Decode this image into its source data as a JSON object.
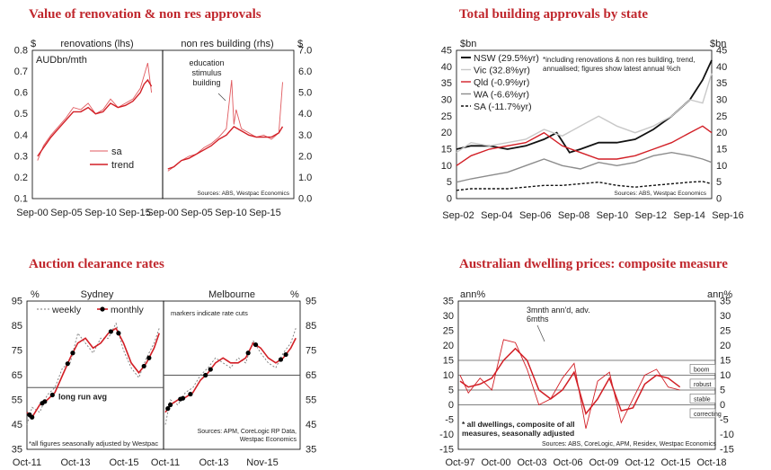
{
  "titles": {
    "p1": "Value of renovation & non res approvals",
    "p2": "Total building approvals by state",
    "p3": "Auction clearance rates",
    "p4": "Australian dwelling prices: composite measure"
  },
  "chart_data": [
    {
      "id": "p1",
      "type": "line",
      "title": "Value of renovation & non res approvals",
      "left": {
        "subtitle": "renovations (lhs)",
        "unit_label": "$",
        "ylabel": "AUDbn/mth",
        "ylim": [
          0.1,
          0.8
        ],
        "yticks": [
          "0.8",
          "0.7",
          "0.6",
          "0.5",
          "0.4",
          "0.3",
          "0.2",
          "0.1"
        ],
        "xticks": [
          "Sep-00",
          "Sep-05",
          "Sep-10",
          "Sep-15"
        ],
        "legend": [
          "sa",
          "trend"
        ],
        "series": [
          {
            "name": "sa",
            "x": [
              2000.7,
              2001.5,
              2002.5,
              2003.5,
              2004.5,
              2005.5,
              2006.5,
              2007.5,
              2008.5,
              2009.5,
              2010.5,
              2011.5,
              2012.5,
              2013.5,
              2014.5,
              2015.0,
              2015.5,
              2016.0
            ],
            "values": [
              0.28,
              0.35,
              0.4,
              0.44,
              0.48,
              0.53,
              0.52,
              0.55,
              0.5,
              0.52,
              0.57,
              0.53,
              0.55,
              0.57,
              0.62,
              0.68,
              0.74,
              0.6
            ]
          },
          {
            "name": "trend",
            "x": [
              2000.7,
              2001.5,
              2002.5,
              2003.5,
              2004.5,
              2005.5,
              2006.5,
              2007.5,
              2008.5,
              2009.5,
              2010.5,
              2011.5,
              2012.5,
              2013.5,
              2014.5,
              2015.0,
              2015.5,
              2016.0
            ],
            "values": [
              0.3,
              0.34,
              0.39,
              0.43,
              0.47,
              0.51,
              0.51,
              0.53,
              0.5,
              0.51,
              0.55,
              0.53,
              0.54,
              0.56,
              0.6,
              0.64,
              0.66,
              0.63
            ]
          }
        ]
      },
      "right": {
        "subtitle": "non res building (rhs)",
        "unit_label": "$",
        "ylim": [
          0,
          7
        ],
        "yticks": [
          "7.0",
          "6.0",
          "5.0",
          "4.0",
          "3.0",
          "2.0",
          "1.0",
          "0.0"
        ],
        "xticks": [
          "Sep-00",
          "Sep-05",
          "Sep-10",
          "Sep-15"
        ],
        "annotation": [
          "education",
          "stimulus",
          "building"
        ],
        "series": [
          {
            "name": "sa",
            "x": [
              2000.7,
              2001.5,
              2002.5,
              2003.5,
              2004.5,
              2005.5,
              2006.5,
              2007.5,
              2008.5,
              2009.2,
              2009.5,
              2009.8,
              2010.5,
              2011.5,
              2012.5,
              2013.5,
              2014.5,
              2015.5,
              2016.0
            ],
            "values": [
              1.3,
              1.5,
              1.8,
              2.0,
              2.1,
              2.4,
              2.6,
              2.9,
              3.3,
              5.6,
              3.5,
              4.2,
              3.3,
              3.1,
              2.9,
              3.0,
              2.8,
              3.1,
              5.5
            ]
          },
          {
            "name": "trend",
            "x": [
              2000.7,
              2001.5,
              2002.5,
              2003.5,
              2004.5,
              2005.5,
              2006.5,
              2007.5,
              2008.5,
              2009.5,
              2010.5,
              2011.5,
              2012.5,
              2013.5,
              2014.5,
              2015.5,
              2016.0
            ],
            "values": [
              1.4,
              1.5,
              1.8,
              1.9,
              2.1,
              2.3,
              2.5,
              2.8,
              3.0,
              3.4,
              3.2,
              3.0,
              2.9,
              2.9,
              2.9,
              3.1,
              3.4
            ]
          }
        ]
      },
      "source": "Sources: ABS, Westpac Economics"
    },
    {
      "id": "p2",
      "type": "line",
      "title": "Total building approvals by state",
      "unit_left": "$bn",
      "unit_right": "$bn",
      "ylim": [
        0,
        45
      ],
      "yticks": [
        "45",
        "40",
        "35",
        "30",
        "25",
        "20",
        "15",
        "10",
        "5",
        "0"
      ],
      "xticks": [
        "Sep-02",
        "Sep-04",
        "Sep-06",
        "Sep-08",
        "Sep-10",
        "Sep-12",
        "Sep-14",
        "Sep-16"
      ],
      "note": [
        "*including renovations & non res building, trend,",
        "annualised; figures show latest annual %ch"
      ],
      "source": "Sources: ABS, Westpac Economics",
      "series": [
        {
          "name": "NSW (29.5%yr)",
          "color": "#111111",
          "x": [
            2002.7,
            2003.5,
            2004.5,
            2005.5,
            2006.5,
            2007.5,
            2008.2,
            2008.9,
            2009.5,
            2010.5,
            2011.5,
            2012.5,
            2013.5,
            2014.5,
            2015.5,
            2016.2,
            2016.7
          ],
          "values": [
            15,
            16,
            16,
            15,
            16,
            18,
            20,
            14,
            15,
            17,
            17,
            18,
            21,
            25,
            30,
            36,
            42
          ]
        },
        {
          "name": "Vic (32.8%yr)",
          "color": "#c8c8c8",
          "x": [
            2002.7,
            2003.5,
            2004.5,
            2005.5,
            2006.5,
            2007.5,
            2008.5,
            2009.5,
            2010.5,
            2011.5,
            2012.5,
            2013.5,
            2014.5,
            2015.5,
            2016.2,
            2016.7
          ],
          "values": [
            14,
            17,
            16,
            17,
            18,
            21,
            19,
            22,
            25,
            22,
            20,
            22,
            25,
            30,
            29,
            38
          ]
        },
        {
          "name": "Qld (-0.9%yr)",
          "color": "#d21f26",
          "x": [
            2002.7,
            2003.5,
            2004.5,
            2005.5,
            2006.5,
            2007.5,
            2008.5,
            2009.5,
            2010.5,
            2011.5,
            2012.5,
            2013.5,
            2014.5,
            2015.5,
            2016.2,
            2016.7
          ],
          "values": [
            10,
            13,
            15,
            16,
            17,
            20,
            16,
            14,
            12,
            12,
            13,
            15,
            17,
            20,
            22,
            20
          ]
        },
        {
          "name": "WA (-6.6%yr)",
          "color": "#8c8c8c",
          "x": [
            2002.7,
            2003.5,
            2004.5,
            2005.5,
            2006.5,
            2007.5,
            2008.5,
            2009.5,
            2010.5,
            2011.5,
            2012.5,
            2013.5,
            2014.5,
            2015.5,
            2016.2,
            2016.7
          ],
          "values": [
            5,
            6,
            7,
            8,
            10,
            12,
            10,
            9,
            11,
            10,
            11,
            13,
            14,
            13,
            12,
            11
          ]
        },
        {
          "name": "SA (-11.7%yr)",
          "color": "#111111",
          "dash": true,
          "x": [
            2002.7,
            2003.5,
            2004.5,
            2005.5,
            2006.5,
            2007.5,
            2008.5,
            2009.5,
            2010.5,
            2011.5,
            2012.5,
            2013.5,
            2014.5,
            2015.5,
            2016.2,
            2016.7
          ],
          "values": [
            2.5,
            3,
            3,
            3,
            3.5,
            4,
            4,
            4.5,
            5,
            4,
            3.5,
            4,
            4.5,
            5,
            5.2,
            4.5
          ]
        }
      ]
    },
    {
      "id": "p3",
      "type": "line",
      "title": "Auction clearance rates",
      "unit_left": "%",
      "unit_right": "%",
      "ylim": [
        35,
        95
      ],
      "yticks": [
        "95",
        "85",
        "75",
        "65",
        "55",
        "45",
        "35"
      ],
      "sydney": {
        "label": "Sydney",
        "xticks": [
          "Oct-11",
          "Oct-13",
          "Oct-15"
        ],
        "legend": [
          "weekly",
          "monthly"
        ],
        "avg_label": "long run avg",
        "avg_value": 60,
        "footnote": "*all figures seasonally adjusted by Westpac",
        "x": [
          2011.8,
          2012.0,
          2012.3,
          2012.6,
          2012.9,
          2013.2,
          2013.5,
          2013.8,
          2014.1,
          2014.4,
          2014.7,
          2015.0,
          2015.3,
          2015.6,
          2015.9,
          2016.2,
          2016.5,
          2016.8,
          2017.0
        ],
        "monthly": [
          50,
          48,
          53,
          55,
          58,
          65,
          72,
          78,
          80,
          76,
          78,
          82,
          84,
          78,
          70,
          66,
          70,
          76,
          82
        ],
        "weekly": [
          45,
          52,
          50,
          57,
          60,
          68,
          70,
          82,
          78,
          74,
          80,
          80,
          86,
          75,
          68,
          64,
          72,
          78,
          84
        ],
        "rate_cuts": [
          2011.9,
          2012.0,
          2012.4,
          2012.5,
          2012.8,
          2013.4,
          2013.6,
          2015.1,
          2015.4,
          2016.4,
          2016.6
        ]
      },
      "melbourne": {
        "label": "Melbourne",
        "xticks": [
          "Oct-11",
          "Oct-13",
          "Nov-15"
        ],
        "note": "markers indicate rate cuts",
        "source": [
          "Sources: APM, CoreLogic RP Data,",
          "Westpac Economics"
        ],
        "x": [
          2011.8,
          2012.0,
          2012.3,
          2012.6,
          2012.9,
          2013.2,
          2013.5,
          2013.8,
          2014.1,
          2014.4,
          2014.7,
          2015.0,
          2015.3,
          2015.6,
          2015.9,
          2016.2,
          2016.5,
          2016.8,
          2017.0
        ],
        "monthly": [
          50,
          53,
          55,
          56,
          58,
          63,
          66,
          70,
          72,
          70,
          70,
          72,
          78,
          76,
          72,
          70,
          72,
          76,
          80
        ],
        "weekly": [
          45,
          55,
          53,
          58,
          60,
          65,
          68,
          72,
          70,
          68,
          72,
          70,
          79,
          74,
          70,
          68,
          74,
          78,
          84
        ],
        "rate_cuts": [
          2011.9,
          2012.0,
          2012.4,
          2012.5,
          2012.8,
          2013.4,
          2013.6,
          2015.1,
          2015.4,
          2016.4,
          2016.6
        ]
      }
    },
    {
      "id": "p4",
      "type": "line",
      "title": "Australian dwelling prices: composite measure",
      "unit_left": "ann%",
      "unit_right": "ann%",
      "ylim": [
        -15,
        35
      ],
      "yticks": [
        "35",
        "30",
        "25",
        "20",
        "15",
        "10",
        "5",
        "0",
        "-5",
        "-10",
        "-15"
      ],
      "xticks": [
        "Oct-97",
        "Oct-00",
        "Oct-03",
        "Oct-06",
        "Oct-09",
        "Oct-12",
        "Oct-15",
        "Oct-18"
      ],
      "annotation": [
        "3mnth ann'd, adv.",
        "6mths"
      ],
      "bands": [
        {
          "label": "boom",
          "value": 12
        },
        {
          "label": "robust",
          "value": 7
        },
        {
          "label": "stable",
          "value": 2
        },
        {
          "label": "correcting",
          "value": -3
        }
      ],
      "footnote": [
        "* all dwellings, composite of all",
        "measures, seasonally adjusted"
      ],
      "source": "Sources: ABS, CoreLogic, APM, Residex, Westpac Economics",
      "series": [
        {
          "name": "annual",
          "x": [
            1997.8,
            1998.5,
            1999.5,
            2000.5,
            2001.5,
            2002.5,
            2003.5,
            2004.5,
            2005.5,
            2006.5,
            2007.5,
            2008.5,
            2009.5,
            2010.5,
            2011.5,
            2012.5,
            2013.5,
            2014.5,
            2015.5,
            2016.5
          ],
          "values": [
            8,
            6,
            7,
            9,
            15,
            19,
            15,
            5,
            2,
            5,
            11,
            -3,
            2,
            9,
            -2,
            -1,
            7,
            10,
            9,
            6
          ]
        },
        {
          "name": "3mnth ann'd, adv. 6mths",
          "x": [
            1997.8,
            1998.5,
            1999.5,
            2000.5,
            2001.5,
            2002.5,
            2003.5,
            2004.5,
            2005.5,
            2006.5,
            2007.5,
            2008.5,
            2009.5,
            2010.5,
            2011.5,
            2012.5,
            2013.5,
            2014.5,
            2015.5,
            2016.5
          ],
          "values": [
            10,
            4,
            9,
            5,
            22,
            21,
            12,
            0,
            2,
            9,
            14,
            -8,
            8,
            11,
            -6,
            2,
            10,
            12,
            6,
            5
          ]
        }
      ]
    }
  ]
}
